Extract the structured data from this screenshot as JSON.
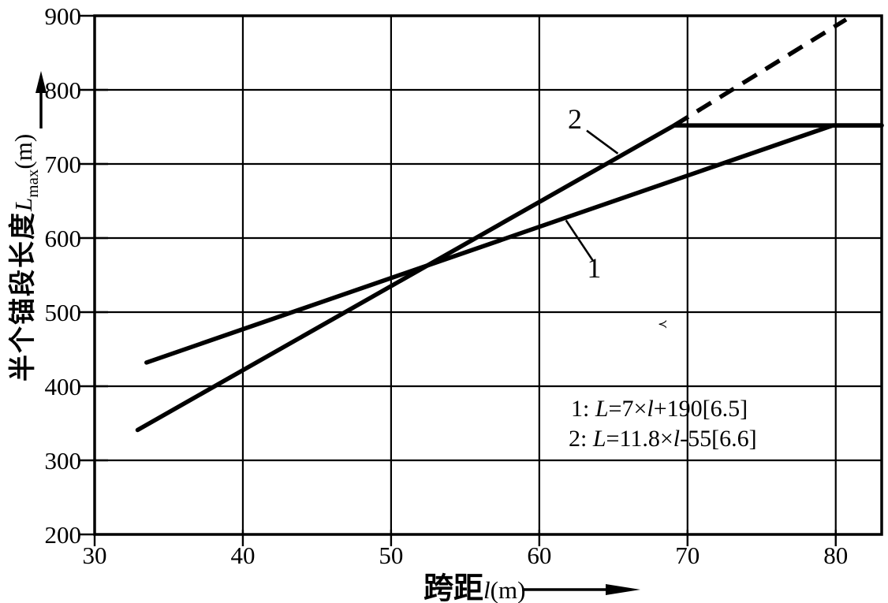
{
  "colors": {
    "ink": "#000000",
    "background": "#ffffff"
  },
  "y_axis": {
    "title_cjk": "半个锚段长度",
    "title_var": "L",
    "title_sub": "max",
    "title_unit": "(m)",
    "arrow_direction": "up",
    "tick_labels": [
      "900",
      "800",
      "700",
      "600",
      "500",
      "400",
      "300",
      "200"
    ]
  },
  "x_axis": {
    "title_cjk": "跨距",
    "title_var": "l",
    "title_unit": "(m)",
    "arrow_direction": "right",
    "tick_labels": [
      "30",
      "40",
      "50",
      "60",
      "70",
      "80"
    ]
  },
  "equations": {
    "eq1": {
      "prefix": "1: ",
      "var1": "L",
      "mid": "=7×",
      "var2": "l",
      "suffix": "+190[6.5]"
    },
    "eq2": {
      "prefix": "2: ",
      "var1": "L",
      "mid": "=11.8×",
      "var2": "l",
      "suffix": "-55[6.6]"
    }
  },
  "stray_mark": "≺",
  "chart_data": {
    "type": "line",
    "title": "",
    "xlabel": "跨距 l (m)",
    "ylabel": "半个锚段长度 Lmax (m)",
    "xlim": [
      30,
      83.1
    ],
    "ylim": [
      200,
      900
    ],
    "x_ticks": [
      30,
      40,
      50,
      60,
      70,
      80
    ],
    "y_ticks": [
      200,
      300,
      400,
      500,
      600,
      700,
      800,
      900
    ],
    "grid": true,
    "legend_position": "none",
    "series": [
      {
        "name": "line-1",
        "label": "1",
        "equation": "L = 7×l + 190 [6.5]",
        "style": "solid",
        "points": [
          [
            33.5,
            432
          ],
          [
            79.8,
            752
          ],
          [
            83.1,
            752
          ]
        ]
      },
      {
        "name": "line-2",
        "label": "2",
        "equation": "L = 11.8×l − 55 [6.6]",
        "style": "solid",
        "points": [
          [
            32.9,
            341
          ],
          [
            69.1,
            752
          ],
          [
            83.1,
            752
          ]
        ]
      },
      {
        "name": "line-2-dashed-extension",
        "label": "",
        "equation": "",
        "style": "dashed",
        "points": [
          [
            69.1,
            752
          ],
          [
            80.7,
            895
          ]
        ]
      }
    ],
    "annotations": [
      {
        "label": "1",
        "x": 63.7,
        "y": 547,
        "leader": [
          [
            61.8,
            624
          ],
          [
            63.6,
            570
          ]
        ]
      },
      {
        "label": "2",
        "x": 62.4,
        "y": 748,
        "leader": [
          [
            63.2,
            745
          ],
          [
            65.3,
            714
          ]
        ]
      }
    ]
  }
}
